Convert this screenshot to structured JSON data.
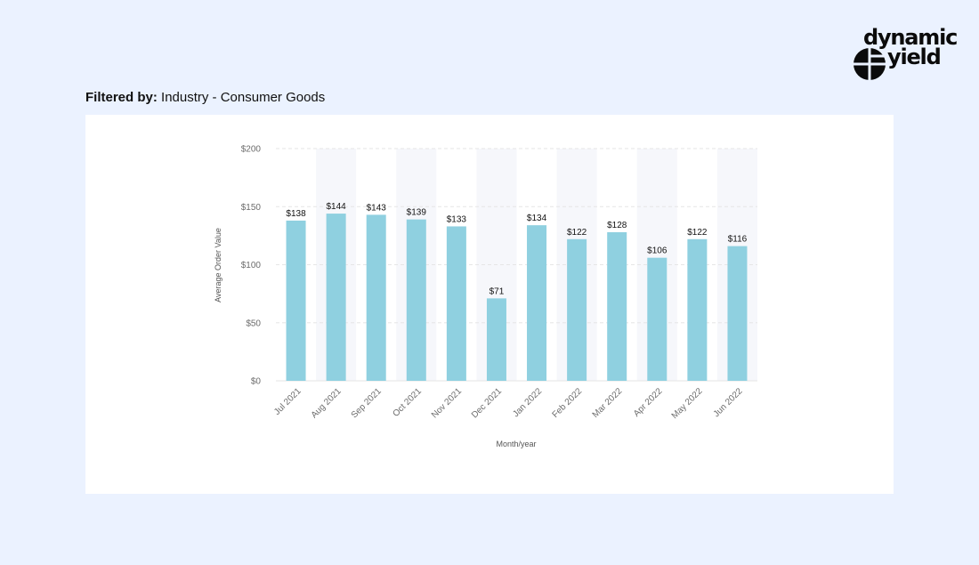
{
  "brand": {
    "word1": "dynamic",
    "word2": "yield",
    "logo_icon": "dynamic-yield-logo-mark"
  },
  "filter": {
    "label": "Filtered by:",
    "value": "Industry - Consumer Goods"
  },
  "colors": {
    "page_background": "#ebf2ff",
    "bar": "#8fd0e0",
    "band": "#f6f7fb",
    "gridline": "#e6e6e6"
  },
  "chart_data": {
    "type": "bar",
    "categories": [
      "Jul 2021",
      "Aug 2021",
      "Sep 2021",
      "Oct 2021",
      "Nov 2021",
      "Dec 2021",
      "Jan 2022",
      "Feb 2022",
      "Mar 2022",
      "Apr 2022",
      "May 2022",
      "Jun 2022"
    ],
    "values": [
      138,
      144,
      143,
      139,
      133,
      71,
      134,
      122,
      128,
      106,
      122,
      116
    ],
    "value_labels": [
      "$138",
      "$144",
      "$143",
      "$139",
      "$133",
      "$71",
      "$134",
      "$122",
      "$128",
      "$106",
      "$122",
      "$116"
    ],
    "xlabel": "Month/year",
    "ylabel": "Average Order Value",
    "ylim": [
      0,
      200
    ],
    "yticks": [
      0,
      50,
      100,
      150,
      200
    ],
    "ytick_labels": [
      "$0",
      "$50",
      "$100",
      "$150",
      "$200"
    ],
    "grid": "horizontal dashed",
    "alternating_bands": true,
    "x_tick_rotation": "-45 degrees"
  }
}
